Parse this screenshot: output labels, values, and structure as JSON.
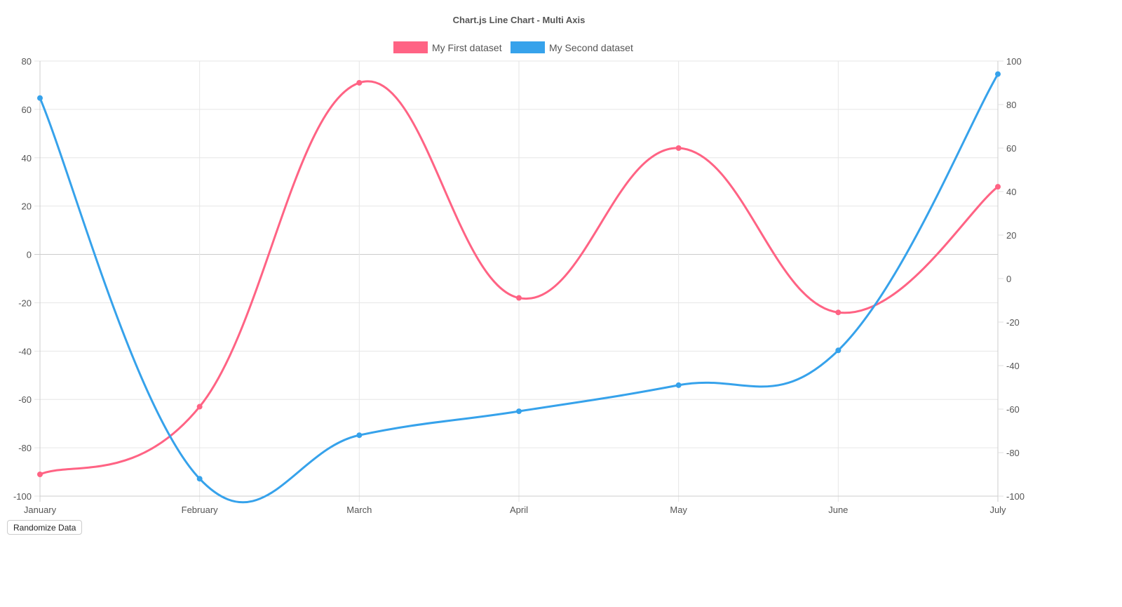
{
  "chart_data": {
    "type": "line",
    "title": "Chart.js Line Chart - Multi Axis",
    "categories": [
      "January",
      "February",
      "March",
      "April",
      "May",
      "June",
      "July"
    ],
    "series": [
      {
        "name": "My First dataset",
        "color": "#ff6384",
        "axis": "left",
        "values": [
          -91,
          -63,
          71,
          -18,
          44,
          -24,
          28
        ]
      },
      {
        "name": "My Second dataset",
        "color": "#36a2eb",
        "axis": "right",
        "values": [
          83,
          -92,
          -72,
          -61,
          -49,
          -33,
          94
        ]
      }
    ],
    "y_left": {
      "range": [
        -100,
        80
      ],
      "ticks": [
        80,
        60,
        40,
        20,
        0,
        -20,
        -40,
        -60,
        -80,
        -100
      ]
    },
    "y_right": {
      "range": [
        -100,
        100
      ],
      "ticks": [
        100,
        80,
        60,
        40,
        20,
        0,
        -20,
        -40,
        -60,
        -80,
        -100
      ]
    },
    "xlabel": "",
    "ylabel": "",
    "legend_position": "top",
    "grid": true,
    "curve": "smooth"
  },
  "controls": {
    "randomize_label": "Randomize Data"
  }
}
